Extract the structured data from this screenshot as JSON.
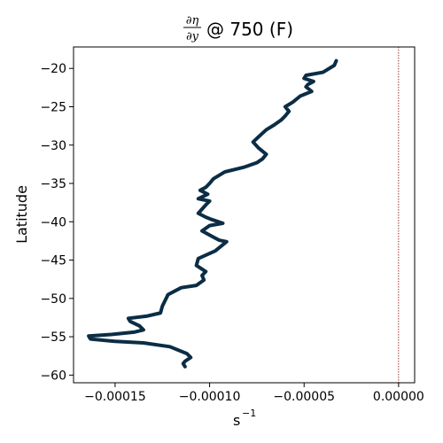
{
  "chart_data": {
    "type": "line",
    "title": {
      "numerator": "∂η",
      "denominator": "∂y",
      "suffix": "@ 750 (F)"
    },
    "xlabel": "s",
    "xlabel_exponent": "−1",
    "ylabel": "Latitude",
    "xlim": [
      -0.000172,
      8.5e-06
    ],
    "ylim": [
      -61.0,
      -17.2
    ],
    "x_ticks": [
      -0.00015,
      -0.0001,
      -5e-05,
      0.0
    ],
    "x_tick_labels": [
      "−0.00015",
      "−0.00010",
      "−0.00005",
      "0.00000"
    ],
    "y_ticks": [
      -20,
      -25,
      -30,
      -35,
      -40,
      -45,
      -50,
      -55,
      -60
    ],
    "y_tick_labels": [
      "−20",
      "−25",
      "−30",
      "−35",
      "−40",
      "−45",
      "−50",
      "−55",
      "−60"
    ],
    "grid": false,
    "reference_line": {
      "x": 0.0,
      "color": "#8b0000",
      "style": "dotted"
    },
    "series": [
      {
        "color": "#0b2d45",
        "x": [
          -3.3e-05,
          -3.4e-05,
          -4e-05,
          -4.9e-05,
          -5e-05,
          -4.5e-05,
          -4.8e-05,
          -4.9e-05,
          -4.6e-05,
          -5.2e-05,
          -5.6e-05,
          -6e-05,
          -5.8e-05,
          -6e-05,
          -6.2e-05,
          -6.6e-05,
          -7e-05,
          -7.4e-05,
          -7.7e-05,
          -7.4e-05,
          -7e-05,
          -7.2e-05,
          -7.5e-05,
          -8.2e-05,
          -9.2e-05,
          -9.8e-05,
          -0.0001,
          -0.000102,
          -0.000105,
          -0.000101,
          -0.000106,
          -0.0001,
          -0.000102,
          -0.000106,
          -0.000102,
          -9.9e-05,
          -9.3e-05,
          -0.0001,
          -0.000104,
          -9.8e-05,
          -9.5e-05,
          -9.1e-05,
          -9.7e-05,
          -0.000106,
          -0.000107,
          -0.000102,
          -0.000104,
          -0.000103,
          -0.000107,
          -0.000115,
          -0.000122,
          -0.000125,
          -0.000126,
          -0.000133,
          -0.000143,
          -0.000142,
          -0.000137,
          -0.000135,
          -0.00014,
          -0.000152,
          -0.000164,
          -0.000163,
          -0.00015,
          -0.000135,
          -0.000121,
          -0.000112,
          -0.00011,
          -0.000113,
          -0.000114,
          -0.000113
        ],
        "y": [
          -19.0,
          -19.6,
          -20.5,
          -20.9,
          -21.3,
          -21.7,
          -22.1,
          -22.4,
          -23.0,
          -23.6,
          -24.4,
          -25.0,
          -25.6,
          -26.2,
          -26.7,
          -27.4,
          -28.0,
          -28.9,
          -29.6,
          -30.4,
          -31.2,
          -31.8,
          -32.3,
          -32.9,
          -33.5,
          -34.4,
          -35.0,
          -35.5,
          -35.9,
          -36.4,
          -37.0,
          -37.3,
          -37.8,
          -38.9,
          -39.4,
          -39.7,
          -40.2,
          -40.5,
          -41.2,
          -42.0,
          -42.4,
          -42.6,
          -43.8,
          -44.8,
          -45.7,
          -46.5,
          -47.0,
          -47.6,
          -48.3,
          -48.6,
          -49.5,
          -51.0,
          -51.9,
          -52.3,
          -52.6,
          -53.0,
          -53.6,
          -54.1,
          -54.4,
          -54.7,
          -54.9,
          -55.3,
          -55.6,
          -55.8,
          -56.3,
          -57.2,
          -57.7,
          -58.2,
          -58.5,
          -58.9
        ]
      }
    ]
  }
}
